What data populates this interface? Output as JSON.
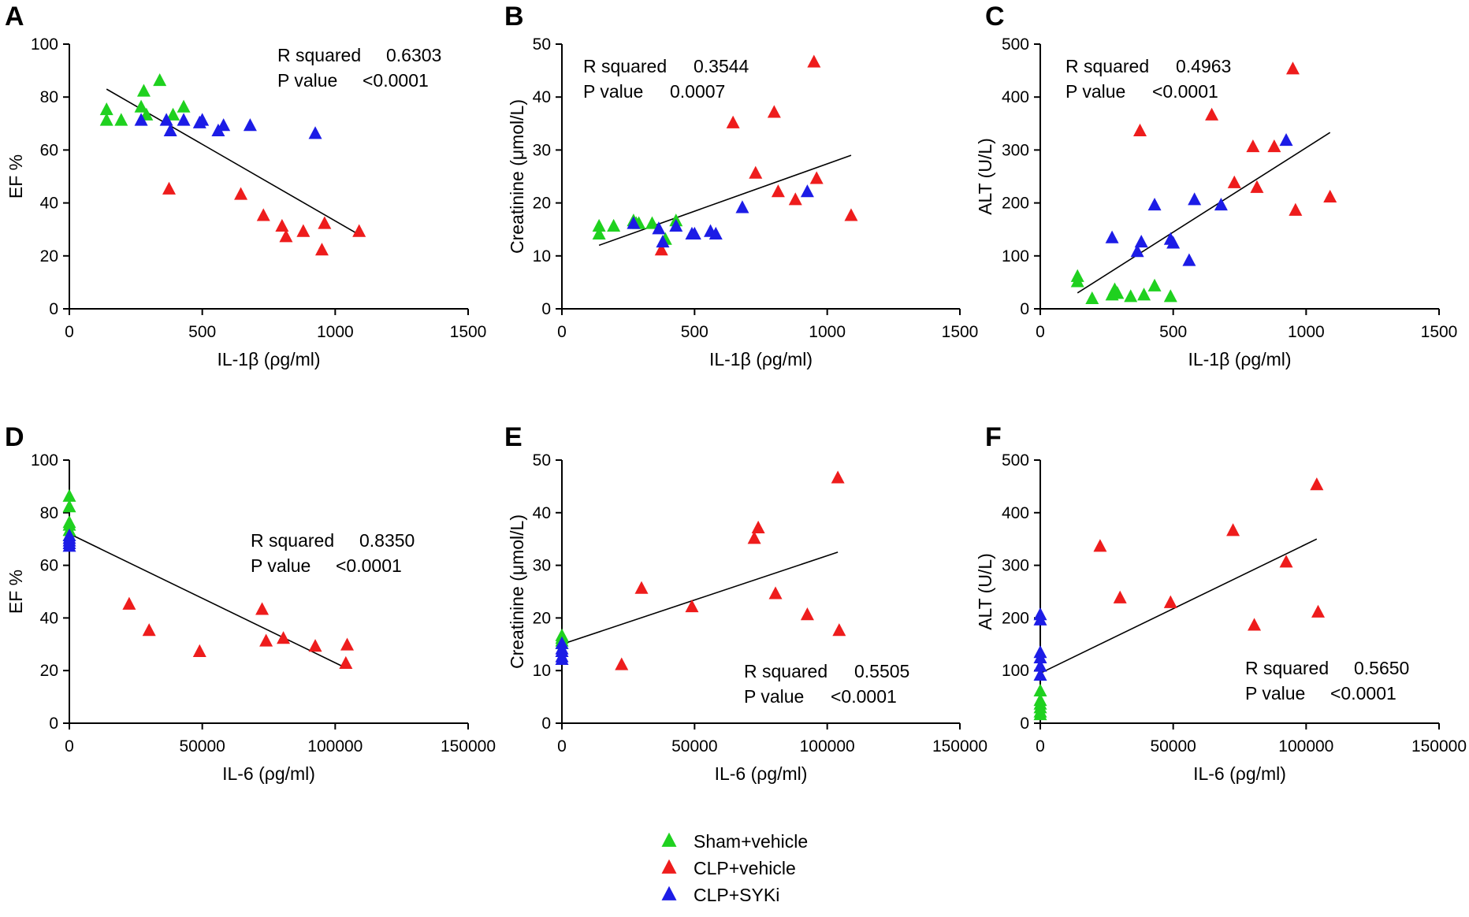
{
  "colors": {
    "sham": "#1fd11f",
    "clp": "#ee1c1c",
    "syki": "#1c1ce6",
    "axis": "#000000"
  },
  "legend": [
    {
      "group": "sham",
      "label": "Sham+vehicle"
    },
    {
      "group": "clp",
      "label": "CLP+vehicle"
    },
    {
      "group": "syki",
      "label": "CLP+SYKi"
    }
  ],
  "chart_data": [
    {
      "panel": "A",
      "type": "scatter",
      "xlabel": "IL-1β (ρg/ml)",
      "ylabel": "EF %",
      "xlim": [
        0,
        1500
      ],
      "ylim": [
        0,
        100
      ],
      "xticks": [
        0,
        500,
        1000,
        1500
      ],
      "xtick_labels": [
        "0",
        "500",
        "1000",
        "1500"
      ],
      "yticks": [
        0,
        20,
        40,
        60,
        80,
        100
      ],
      "ytick_labels": [
        "0",
        "20",
        "40",
        "60",
        "80",
        "100"
      ],
      "stats": {
        "r2_label": "R squared",
        "r2_value": "0.6303",
        "p_label": "P value",
        "p_value": "<0.0001"
      },
      "regression": [
        [
          140,
          83
        ],
        [
          1090,
          28
        ]
      ],
      "series": [
        {
          "group": "sham",
          "points": [
            [
              140,
              75
            ],
            [
              140,
              71
            ],
            [
              195,
              71
            ],
            [
              270,
              76
            ],
            [
              280,
              82
            ],
            [
              290,
              73
            ],
            [
              340,
              86
            ],
            [
              390,
              73
            ],
            [
              430,
              76
            ]
          ]
        },
        {
          "group": "clp",
          "points": [
            [
              375,
              45
            ],
            [
              645,
              43
            ],
            [
              730,
              35
            ],
            [
              800,
              31
            ],
            [
              815,
              27
            ],
            [
              880,
              29
            ],
            [
              950,
              22
            ],
            [
              960,
              32
            ],
            [
              1090,
              29
            ]
          ]
        },
        {
          "group": "syki",
          "points": [
            [
              270,
              71
            ],
            [
              365,
              71
            ],
            [
              380,
              67
            ],
            [
              430,
              71
            ],
            [
              490,
              70
            ],
            [
              500,
              71
            ],
            [
              560,
              67
            ],
            [
              580,
              69
            ],
            [
              680,
              69
            ],
            [
              925,
              66
            ]
          ]
        }
      ]
    },
    {
      "panel": "B",
      "type": "scatter",
      "xlabel": "IL-1β (ρg/ml)",
      "ylabel": "Creatinine (μmol/L)",
      "xlim": [
        0,
        1500
      ],
      "ylim": [
        0,
        50
      ],
      "xticks": [
        0,
        500,
        1000,
        1500
      ],
      "xtick_labels": [
        "0",
        "500",
        "1000",
        "1500"
      ],
      "yticks": [
        0,
        10,
        20,
        30,
        40,
        50
      ],
      "ytick_labels": [
        "0",
        "10",
        "20",
        "30",
        "40",
        "50"
      ],
      "stats": {
        "r2_label": "R squared",
        "r2_value": "0.3544",
        "p_label": "P value",
        "p_value": "0.0007"
      },
      "regression": [
        [
          140,
          12
        ],
        [
          1090,
          29
        ]
      ],
      "series": [
        {
          "group": "sham",
          "points": [
            [
              140,
              15.5
            ],
            [
              140,
              14
            ],
            [
              195,
              15.5
            ],
            [
              270,
              16.5
            ],
            [
              280,
              16
            ],
            [
              290,
              16
            ],
            [
              340,
              16
            ],
            [
              390,
              13
            ],
            [
              430,
              16.5
            ]
          ]
        },
        {
          "group": "clp",
          "points": [
            [
              375,
              11
            ],
            [
              645,
              35
            ],
            [
              730,
              25.5
            ],
            [
              800,
              37
            ],
            [
              815,
              22
            ],
            [
              880,
              20.5
            ],
            [
              950,
              46.5
            ],
            [
              960,
              24.5
            ],
            [
              1090,
              17.5
            ]
          ]
        },
        {
          "group": "syki",
          "points": [
            [
              270,
              16
            ],
            [
              365,
              15
            ],
            [
              380,
              12.5
            ],
            [
              430,
              15.5
            ],
            [
              490,
              14
            ],
            [
              500,
              14
            ],
            [
              560,
              14.5
            ],
            [
              580,
              14
            ],
            [
              680,
              19
            ],
            [
              925,
              22
            ]
          ]
        }
      ]
    },
    {
      "panel": "C",
      "type": "scatter",
      "xlabel": "IL-1β (ρg/ml)",
      "ylabel": "ALT (U/L)",
      "xlim": [
        0,
        1500
      ],
      "ylim": [
        0,
        500
      ],
      "xticks": [
        0,
        500,
        1000,
        1500
      ],
      "xtick_labels": [
        "0",
        "500",
        "1000",
        "1500"
      ],
      "yticks": [
        0,
        100,
        200,
        300,
        400,
        500
      ],
      "ytick_labels": [
        "0",
        "100",
        "200",
        "300",
        "400",
        "500"
      ],
      "stats": {
        "r2_label": "R squared",
        "r2_value": "0.4963",
        "p_label": "P value",
        "p_value": "<0.0001"
      },
      "regression": [
        [
          140,
          30
        ],
        [
          1090,
          333
        ]
      ],
      "series": [
        {
          "group": "sham",
          "points": [
            [
              140,
              60
            ],
            [
              140,
              50
            ],
            [
              195,
              18
            ],
            [
              270,
              25
            ],
            [
              280,
              35
            ],
            [
              290,
              28
            ],
            [
              340,
              22
            ],
            [
              390,
              25
            ],
            [
              430,
              42
            ],
            [
              490,
              22
            ]
          ]
        },
        {
          "group": "clp",
          "points": [
            [
              375,
              335
            ],
            [
              645,
              365
            ],
            [
              730,
              237
            ],
            [
              800,
              305
            ],
            [
              815,
              228
            ],
            [
              880,
              305
            ],
            [
              950,
              452
            ],
            [
              960,
              185
            ],
            [
              1090,
              210
            ]
          ]
        },
        {
          "group": "syki",
          "points": [
            [
              270,
              133
            ],
            [
              365,
              107
            ],
            [
              380,
              125
            ],
            [
              430,
              195
            ],
            [
              490,
              130
            ],
            [
              500,
              123
            ],
            [
              560,
              90
            ],
            [
              580,
              205
            ],
            [
              680,
              195
            ],
            [
              925,
              317
            ]
          ]
        }
      ]
    },
    {
      "panel": "D",
      "type": "scatter",
      "xlabel": "IL-6 (ρg/ml)",
      "ylabel": "EF %",
      "xlim": [
        0,
        150000
      ],
      "ylim": [
        0,
        100
      ],
      "xticks": [
        0,
        50000,
        100000,
        150000
      ],
      "xtick_labels": [
        "0",
        "50000",
        "100000",
        "150000"
      ],
      "yticks": [
        0,
        20,
        40,
        60,
        80,
        100
      ],
      "ytick_labels": [
        "0",
        "20",
        "40",
        "60",
        "80",
        "100"
      ],
      "stats": {
        "r2_label": "R squared",
        "r2_value": "0.8350",
        "p_label": "P value",
        "p_value": "<0.0001"
      },
      "regression": [
        [
          0,
          72
        ],
        [
          104000,
          21
        ]
      ],
      "series": [
        {
          "group": "sham",
          "points": [
            [
              0,
              86
            ],
            [
              0,
              82
            ],
            [
              0,
              76
            ],
            [
              0,
              75
            ],
            [
              0,
              73
            ],
            [
              0,
              71
            ]
          ]
        },
        {
          "group": "clp",
          "points": [
            [
              22500,
              45
            ],
            [
              30000,
              35
            ],
            [
              49000,
              27
            ],
            [
              72500,
              43
            ],
            [
              74000,
              31
            ],
            [
              80500,
              32
            ],
            [
              92500,
              29
            ],
            [
              104000,
              22.5
            ],
            [
              104500,
              29.5
            ]
          ]
        },
        {
          "group": "syki",
          "points": [
            [
              0,
              71
            ],
            [
              0,
              70
            ],
            [
              0,
              69
            ],
            [
              0,
              68
            ],
            [
              0,
              67
            ]
          ]
        }
      ]
    },
    {
      "panel": "E",
      "type": "scatter",
      "xlabel": "IL-6 (ρg/ml)",
      "ylabel": "Creatinine (μmol/L)",
      "xlim": [
        0,
        150000
      ],
      "ylim": [
        0,
        50
      ],
      "xticks": [
        0,
        50000,
        100000,
        150000
      ],
      "xtick_labels": [
        "0",
        "50000",
        "100000",
        "150000"
      ],
      "yticks": [
        0,
        10,
        20,
        30,
        40,
        50
      ],
      "ytick_labels": [
        "0",
        "10",
        "20",
        "30",
        "40",
        "50"
      ],
      "stats": {
        "r2_label": "R squared",
        "r2_value": "0.5505",
        "p_label": "P value",
        "p_value": "<0.0001"
      },
      "regression": [
        [
          0,
          15
        ],
        [
          104000,
          32.5
        ]
      ],
      "series": [
        {
          "group": "sham",
          "points": [
            [
              0,
              16.5
            ],
            [
              0,
              16
            ],
            [
              0,
              15.5
            ],
            [
              0,
              15
            ]
          ]
        },
        {
          "group": "clp",
          "points": [
            [
              22500,
              11
            ],
            [
              30000,
              25.5
            ],
            [
              49000,
              22
            ],
            [
              72500,
              35
            ],
            [
              74000,
              37
            ],
            [
              80500,
              24.5
            ],
            [
              92500,
              20.5
            ],
            [
              104000,
              46.5
            ],
            [
              104500,
              17.5
            ]
          ]
        },
        {
          "group": "syki",
          "points": [
            [
              0,
              15
            ],
            [
              0,
              14
            ],
            [
              0,
              13.5
            ],
            [
              0,
              12.5
            ],
            [
              0,
              12
            ]
          ]
        }
      ]
    },
    {
      "panel": "F",
      "type": "scatter",
      "xlabel": "IL-6 (ρg/ml)",
      "ylabel": "ALT (U/L)",
      "xlim": [
        0,
        150000
      ],
      "ylim": [
        0,
        500
      ],
      "xticks": [
        0,
        50000,
        100000,
        150000
      ],
      "xtick_labels": [
        "0",
        "50000",
        "100000",
        "150000"
      ],
      "yticks": [
        0,
        100,
        200,
        300,
        400,
        500
      ],
      "ytick_labels": [
        "0",
        "100",
        "200",
        "300",
        "400",
        "500"
      ],
      "stats": {
        "r2_label": "R squared",
        "r2_value": "0.5650",
        "p_label": "P value",
        "p_value": "<0.0001"
      },
      "regression": [
        [
          0,
          95
        ],
        [
          104000,
          350
        ]
      ],
      "series": [
        {
          "group": "sham",
          "points": [
            [
              0,
              60
            ],
            [
              0,
              42
            ],
            [
              0,
              35
            ],
            [
              0,
              28
            ],
            [
              0,
              20
            ],
            [
              0,
              15
            ]
          ]
        },
        {
          "group": "clp",
          "points": [
            [
              22500,
              335
            ],
            [
              30000,
              237
            ],
            [
              49000,
              228
            ],
            [
              72500,
              365
            ],
            [
              80500,
              185
            ],
            [
              92500,
              305
            ],
            [
              104000,
              452
            ],
            [
              104500,
              210
            ]
          ]
        },
        {
          "group": "syki",
          "points": [
            [
              0,
              205
            ],
            [
              0,
              195
            ],
            [
              0,
              133
            ],
            [
              0,
              123
            ],
            [
              0,
              107
            ],
            [
              0,
              90
            ]
          ]
        }
      ]
    }
  ]
}
